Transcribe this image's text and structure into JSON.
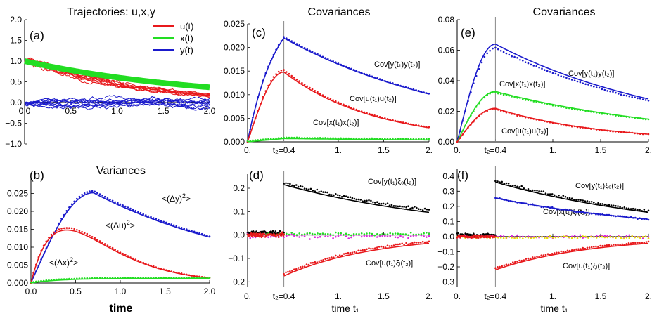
{
  "panels": [
    {
      "id": "a",
      "label": "(a)",
      "title": "Trajectories:  u,x,y",
      "xlim": [
        0,
        2
      ],
      "ylim": [
        -1,
        2
      ],
      "xticks": [
        {
          "v": 0,
          "t": "0.0"
        },
        {
          "v": 0.5,
          "t": "0.5"
        },
        {
          "v": 1,
          "t": "1.0"
        },
        {
          "v": 1.5,
          "t": "1.5"
        },
        {
          "v": 2,
          "t": "2.0"
        }
      ],
      "yticks": [
        {
          "v": -1,
          "t": "−1.0"
        },
        {
          "v": -0.5,
          "t": "−0.5"
        },
        {
          "v": 0,
          "t": "0.0"
        },
        {
          "v": 0.5,
          "t": "0.5"
        },
        {
          "v": 1,
          "t": "1.0"
        },
        {
          "v": 1.5,
          "t": "1.5"
        },
        {
          "v": 2,
          "t": "2.0"
        }
      ],
      "legend": [
        {
          "label": "u(t)",
          "color": "#e8191c"
        },
        {
          "label": "x(t)",
          "color": "#22dd22"
        },
        {
          "label": "y(t)",
          "color": "#1a1acc"
        }
      ]
    },
    {
      "id": "b",
      "label": "(b)",
      "title": "Variances",
      "xlabel": "time",
      "xlim": [
        0,
        2
      ],
      "ylim": [
        0,
        0.03
      ],
      "xticks": [
        {
          "v": 0,
          "t": "0.0"
        },
        {
          "v": 0.5,
          "t": "0.5"
        },
        {
          "v": 1,
          "t": "1.0"
        },
        {
          "v": 1.5,
          "t": "1.5"
        },
        {
          "v": 2,
          "t": "2.0"
        }
      ],
      "yticks": [
        {
          "v": 0,
          "t": "0.000"
        },
        {
          "v": 0.005,
          "t": "0.005"
        },
        {
          "v": 0.01,
          "t": "0.010"
        },
        {
          "v": 0.015,
          "t": "0.015"
        },
        {
          "v": 0.02,
          "t": "0.020"
        },
        {
          "v": 0.025,
          "t": "0.025"
        }
      ],
      "curve_labels": {
        "y": "<(Δy)",
        "u": "<(Δu)",
        "x": "<(Δx)",
        "sup": "2",
        "close": ">"
      }
    },
    {
      "id": "c",
      "label": "(c)",
      "title": "Covariances",
      "xlim": [
        0,
        2
      ],
      "ylim": [
        0,
        0.025
      ],
      "xticks": [
        {
          "v": 0,
          "t": "0."
        },
        {
          "v": 0.4,
          "t": "t₂=0.4"
        },
        {
          "v": 1,
          "t": "1."
        },
        {
          "v": 1.5,
          "t": "1.5"
        },
        {
          "v": 2,
          "t": "2."
        }
      ],
      "yticks": [
        {
          "v": 0,
          "t": "0.000"
        },
        {
          "v": 0.005,
          "t": "0.005"
        },
        {
          "v": 0.01,
          "t": "0.010"
        },
        {
          "v": 0.015,
          "t": "0.015"
        },
        {
          "v": 0.02,
          "t": "0.020"
        },
        {
          "v": 0.025,
          "t": "0.025"
        }
      ],
      "curve_labels": [
        "Cov[y(t₁)y(t₂)]",
        "Cov[u(t₁)u(t₂)]",
        "Cov[x(t₁)x(t₂)]"
      ]
    },
    {
      "id": "d",
      "label": "(d)",
      "xlabel": "time  t₁",
      "xlim": [
        0,
        2
      ],
      "ylim": [
        -0.22,
        0.26
      ],
      "xticks": [
        {
          "v": 0,
          "t": "0."
        },
        {
          "v": 0.4,
          "t": "t₂=0.4"
        },
        {
          "v": 1,
          "t": "1."
        },
        {
          "v": 1.5,
          "t": "1.5"
        },
        {
          "v": 2,
          "t": "2."
        }
      ],
      "yticks": [
        {
          "v": -0.2,
          "t": "−0.2"
        },
        {
          "v": -0.1,
          "t": "−0.1"
        },
        {
          "v": 0,
          "t": "0.0"
        },
        {
          "v": 0.1,
          "t": "0.1"
        },
        {
          "v": 0.2,
          "t": "0.2"
        }
      ],
      "curve_labels": [
        "Cov[y(t₁)ξₒ(t₂)]",
        "Cov[u(t₁)ξᵢ(t₂)]"
      ]
    },
    {
      "id": "e",
      "label": "(e)",
      "title": "Covariances",
      "xlim": [
        0,
        2
      ],
      "ylim": [
        0,
        0.08
      ],
      "xticks": [
        {
          "v": 0,
          "t": "0."
        },
        {
          "v": 0.4,
          "t": "t₂=0.4"
        },
        {
          "v": 1,
          "t": "1."
        },
        {
          "v": 1.5,
          "t": "1.5"
        },
        {
          "v": 2,
          "t": "2."
        }
      ],
      "yticks": [
        {
          "v": 0,
          "t": "0.00"
        },
        {
          "v": 0.02,
          "t": "0.02"
        },
        {
          "v": 0.04,
          "t": "0.04"
        },
        {
          "v": 0.06,
          "t": "0.06"
        },
        {
          "v": 0.08,
          "t": "0.08"
        }
      ],
      "curve_labels": [
        "Cov[y(t₁)y(t₂)]",
        "Cov[x(t₁)x(t₂)]",
        "Cov[u(t₁)u(t₂)]"
      ]
    },
    {
      "id": "f",
      "label": "(f)",
      "xlabel": "time  t₁",
      "xlim": [
        0,
        2
      ],
      "ylim": [
        -0.33,
        0.45
      ],
      "xticks": [
        {
          "v": 0,
          "t": "0."
        },
        {
          "v": 0.4,
          "t": "t₂=0.4"
        },
        {
          "v": 1,
          "t": "1."
        },
        {
          "v": 1.5,
          "t": "1.5"
        },
        {
          "v": 2,
          "t": "2."
        }
      ],
      "yticks": [
        {
          "v": -0.3,
          "t": "−0.3"
        },
        {
          "v": -0.2,
          "t": "−0.2"
        },
        {
          "v": -0.1,
          "t": "−0.1"
        },
        {
          "v": 0,
          "t": "0.0"
        },
        {
          "v": 0.1,
          "t": "0.1"
        },
        {
          "v": 0.2,
          "t": "0.2"
        },
        {
          "v": 0.3,
          "t": "0.3"
        },
        {
          "v": 0.4,
          "t": "0.4"
        }
      ],
      "curve_labels": [
        "Cov[y(t₁)ξₒ(t₂)]",
        "Cov[x(t₁)ξᵢ(t₂)]",
        "Cov[u(t₁)ξᵢ(t₂)]"
      ]
    }
  ],
  "colors": {
    "red": "#e8191c",
    "green": "#22dd22",
    "blue": "#1a1acc",
    "black": "#000000",
    "magenta": "#e020e0",
    "yellow": "#e8e000"
  },
  "chart_data": [
    {
      "panel": "a",
      "type": "line",
      "title": "Trajectories:  u,x,y",
      "series": [
        {
          "name": "u(t)",
          "x": [
            0,
            0.25,
            0.5,
            1.0,
            1.5,
            2.0
          ],
          "values": [
            1.0,
            0.96,
            0.75,
            0.45,
            0.28,
            0.17
          ]
        },
        {
          "name": "x(t)",
          "x": [
            0,
            0.5,
            1.0,
            1.5,
            2.0
          ],
          "values": [
            1.0,
            0.8,
            0.62,
            0.48,
            0.37
          ]
        },
        {
          "name": "y(t)",
          "x": [
            0,
            0.5,
            1.0,
            1.5,
            2.0
          ],
          "values": [
            0.0,
            0.05,
            0.02,
            -0.02,
            -0.04
          ]
        }
      ]
    },
    {
      "panel": "b",
      "type": "line",
      "title": "Variances",
      "xlabel": "time",
      "series": [
        {
          "name": "<(Δy)²>",
          "x": [
            0,
            0.25,
            0.5,
            0.7,
            1.0,
            1.5,
            2.0
          ],
          "values": [
            0,
            0.0145,
            0.0225,
            0.0252,
            0.024,
            0.0185,
            0.0122
          ]
        },
        {
          "name": "<(Δu)²>",
          "x": [
            0,
            0.2,
            0.4,
            0.6,
            1.0,
            1.5,
            2.0
          ],
          "values": [
            0,
            0.0118,
            0.0148,
            0.0138,
            0.0085,
            0.004,
            0.0018
          ]
        },
        {
          "name": "<(Δx)²>",
          "x": [
            0,
            0.5,
            1.0,
            1.5,
            2.0
          ],
          "values": [
            0,
            0.0009,
            0.0013,
            0.0013,
            0.0012
          ]
        }
      ]
    },
    {
      "panel": "c",
      "type": "line",
      "title": "Covariances",
      "series": [
        {
          "name": "Cov[y(t₁)y(t₂)]",
          "x": [
            0,
            0.2,
            0.4,
            1.0,
            1.5,
            2.0
          ],
          "values": [
            0,
            0.0138,
            0.022,
            0.0169,
            0.0133,
            0.0101
          ]
        },
        {
          "name": "Cov[u(t₁)u(t₂)]",
          "x": [
            0,
            0.2,
            0.4,
            1.0,
            1.5,
            2.0
          ],
          "values": [
            0,
            0.0118,
            0.0148,
            0.0087,
            0.0051,
            0.003
          ]
        },
        {
          "name": "Cov[x(t₁)x(t₂)]",
          "x": [
            0,
            0.4,
            1.0,
            2.0
          ],
          "values": [
            0,
            0.0007,
            0.0006,
            0.0004
          ]
        }
      ]
    },
    {
      "panel": "d",
      "type": "line",
      "series": [
        {
          "name": "Cov[y(t₁)ξₒ(t₂)]",
          "x": [
            0.4,
            1.0,
            1.5,
            2.0
          ],
          "values": [
            0.215,
            0.16,
            0.125,
            0.095
          ]
        },
        {
          "name": "Cov[u(t₁)ξᵢ(t₂)]",
          "x": [
            0.4,
            1.0,
            1.5,
            2.0
          ],
          "values": [
            -0.175,
            -0.095,
            -0.058,
            -0.035
          ]
        }
      ]
    },
    {
      "panel": "e",
      "type": "line",
      "title": "Covariances",
      "series": [
        {
          "name": "Cov[y(t₁)y(t₂)]",
          "x": [
            0,
            0.2,
            0.4,
            1.0,
            1.5,
            2.0
          ],
          "values": [
            0,
            0.042,
            0.064,
            0.048,
            0.037,
            0.028
          ]
        },
        {
          "name": "Cov[x(t₁)x(t₂)]",
          "x": [
            0,
            0.2,
            0.4,
            1.0,
            1.5,
            2.0
          ],
          "values": [
            0,
            0.022,
            0.033,
            0.025,
            0.019,
            0.015
          ]
        },
        {
          "name": "Cov[u(t₁)u(t₂)]",
          "x": [
            0,
            0.2,
            0.4,
            1.0,
            1.5,
            2.0
          ],
          "values": [
            0,
            0.016,
            0.022,
            0.013,
            0.008,
            0.005
          ]
        }
      ]
    },
    {
      "panel": "f",
      "type": "line",
      "series": [
        {
          "name": "Cov[y(t₁)ξₒ(t₂)]",
          "x": [
            0.4,
            1.0,
            1.5,
            2.0
          ],
          "values": [
            0.36,
            0.27,
            0.21,
            0.16
          ]
        },
        {
          "name": "Cov[x(t₁)ξᵢ(t₂)]",
          "x": [
            0.4,
            1.0,
            1.5,
            2.0
          ],
          "values": [
            0.255,
            0.19,
            0.15,
            0.115
          ]
        },
        {
          "name": "Cov[u(t₁)ξᵢ(t₂)]",
          "x": [
            0.4,
            1.0,
            1.5,
            2.0
          ],
          "values": [
            -0.22,
            -0.13,
            -0.08,
            -0.045
          ]
        }
      ]
    }
  ]
}
